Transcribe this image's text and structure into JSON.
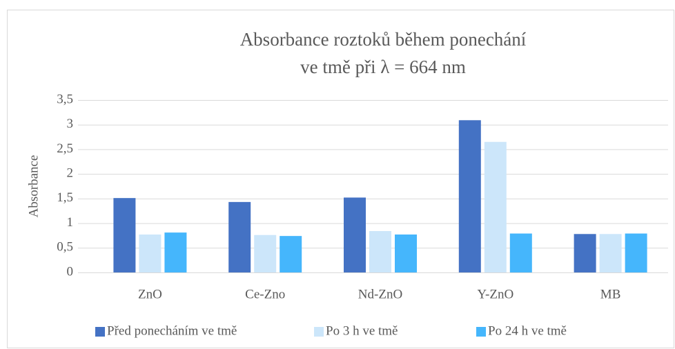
{
  "chart_data": {
    "type": "bar",
    "title": [
      "Absorbance roztoků během ponechání",
      "ve tmě při λ = 664 nm"
    ],
    "y_label": "Absorbance",
    "categories": [
      "ZnO",
      "Ce-Zno",
      "Nd-ZnO",
      "Y-ZnO",
      "MB"
    ],
    "series": [
      {
        "name": "Před ponecháním ve tmě",
        "color": "#4472c4",
        "values": [
          1.51,
          1.43,
          1.52,
          3.09,
          0.78
        ]
      },
      {
        "name": "Po 3 h ve tmě",
        "color": "#cce6fa",
        "values": [
          0.77,
          0.76,
          0.84,
          2.65,
          0.78
        ]
      },
      {
        "name": "Po 24 h ve tmě",
        "color": "#45b6fc",
        "values": [
          0.81,
          0.74,
          0.77,
          0.79,
          0.79
        ]
      }
    ],
    "ylim": [
      0,
      3.5
    ],
    "yticks": [
      0,
      {
        "value": 0.5,
        "label": "0,5"
      },
      1,
      {
        "value": 1.5,
        "label": "1,5"
      },
      2,
      {
        "value": 2.5,
        "label": "2,5"
      },
      3,
      {
        "value": 3.5,
        "label": "3,5"
      }
    ],
    "grid": true,
    "legend": "bottom"
  }
}
